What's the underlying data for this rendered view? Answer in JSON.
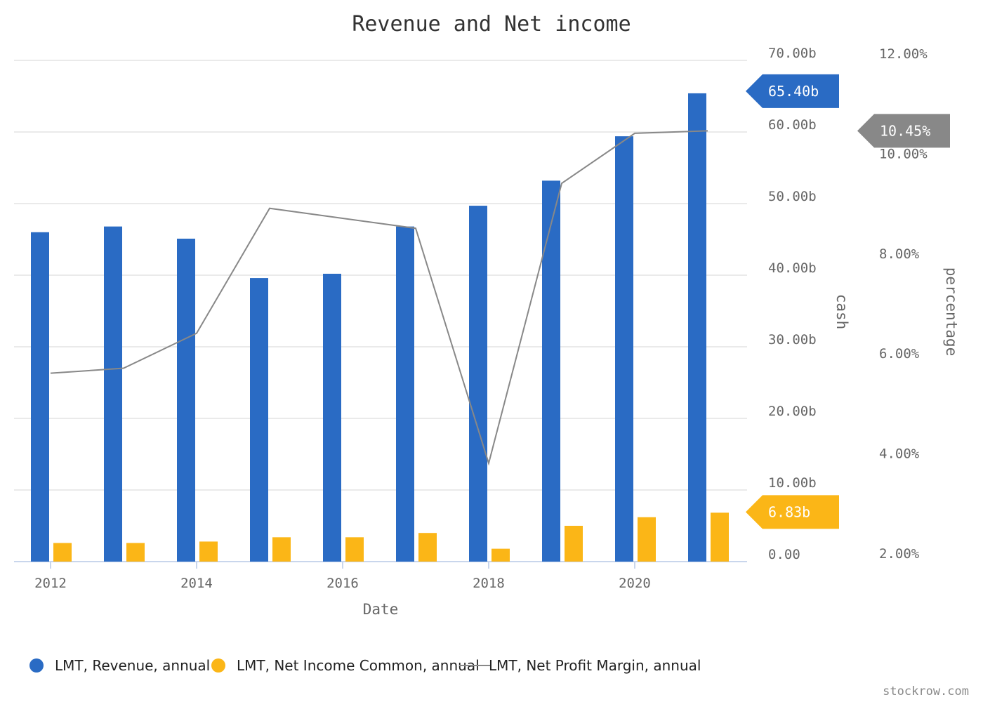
{
  "chart_data": {
    "type": "bar",
    "title": "Revenue and Net income",
    "xlabel": "Date",
    "ylabel_left": "cash",
    "ylabel_right": "percentage",
    "categories": [
      2012,
      2013,
      2014,
      2015,
      2016,
      2017,
      2018,
      2019,
      2020,
      2021
    ],
    "x_tick_labels": [
      "2012",
      "2014",
      "2016",
      "2018",
      "2020"
    ],
    "y_left_ticks": [
      "0.00",
      "10.00b",
      "20.00b",
      "30.00b",
      "40.00b",
      "50.00b",
      "60.00b",
      "70.00b"
    ],
    "y_left_range": [
      0,
      70
    ],
    "y_right_ticks": [
      "2.00%",
      "4.00%",
      "6.00%",
      "8.00%",
      "10.00%",
      "12.00%"
    ],
    "y_right_range": [
      2,
      12
    ],
    "series": [
      {
        "name": "LMT, Revenue, annual",
        "kind": "bar",
        "color": "#2a6bc4",
        "unit": "billion",
        "values": [
          46.0,
          46.8,
          45.1,
          39.6,
          40.2,
          46.8,
          49.7,
          53.2,
          59.4,
          65.4
        ],
        "last_value_label": "65.40b"
      },
      {
        "name": "LMT, Net Income Common, annual",
        "kind": "bar",
        "color": "#fbb617",
        "unit": "billion",
        "values": [
          2.6,
          2.6,
          2.8,
          3.4,
          3.4,
          4.0,
          1.8,
          5.0,
          6.2,
          6.83
        ],
        "last_value_label": "6.83b"
      },
      {
        "name": "LMT, Net Profit Margin, annual",
        "kind": "line",
        "color": "#888888",
        "unit": "percent",
        "values": [
          5.6,
          5.7,
          6.4,
          8.9,
          8.7,
          8.5,
          3.8,
          9.4,
          10.4,
          10.45
        ],
        "last_value_label": "10.45%"
      }
    ],
    "legend": [
      "LMT, Revenue, annual",
      "LMT, Net Income Common, annual",
      "LMT, Net Profit Margin, annual"
    ],
    "legend_position": "bottom-left",
    "grid": true
  },
  "watermark": "stockrow.com"
}
